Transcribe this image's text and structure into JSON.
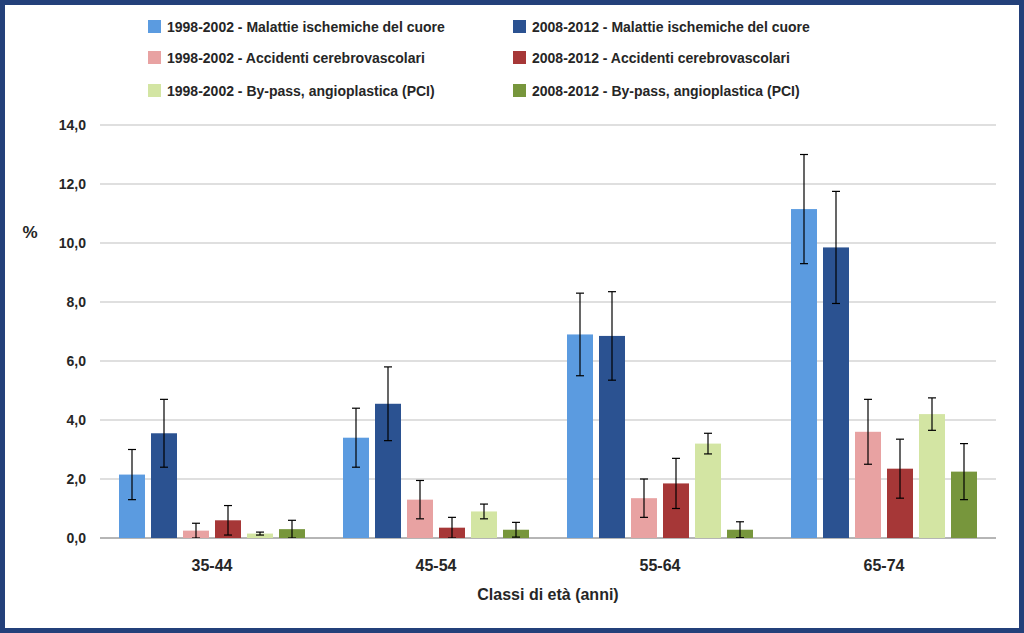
{
  "chart_data": {
    "type": "bar",
    "x_label": "Classi di età (anni)",
    "y_label": "%",
    "categories": [
      "35-44",
      "45-54",
      "55-64",
      "65-74"
    ],
    "series": [
      {
        "name": "1998-2002 - Malattie ischemiche del cuore",
        "color": "#5b9be0",
        "values": [
          2.15,
          3.4,
          6.9,
          11.15
        ],
        "errors": [
          0.85,
          1.0,
          1.4,
          1.85
        ]
      },
      {
        "name": "2008-2012 - Malattie ischemiche del cuore",
        "color": "#2b5291",
        "values": [
          3.55,
          4.55,
          6.85,
          9.85
        ],
        "errors": [
          1.15,
          1.25,
          1.5,
          1.9
        ]
      },
      {
        "name": "1998-2002 - Accidenti cerebrovascolari",
        "color": "#e8a2a2",
        "values": [
          0.25,
          1.3,
          1.35,
          3.6
        ],
        "errors": [
          0.25,
          0.65,
          0.65,
          1.1
        ]
      },
      {
        "name": "2008-2012 - Accidenti cerebrovascolari",
        "color": "#a63737",
        "values": [
          0.6,
          0.35,
          1.85,
          2.35
        ],
        "errors": [
          0.5,
          0.35,
          0.85,
          1.0
        ]
      },
      {
        "name": "1998-2002 - By-pass, angioplastica (PCI)",
        "color": "#d3e5a3",
        "values": [
          0.15,
          0.9,
          3.2,
          4.2
        ],
        "errors": [
          0.05,
          0.25,
          0.35,
          0.55
        ]
      },
      {
        "name": "2008-2012 - By-pass, angioplastica (PCI)",
        "color": "#77963c",
        "values": [
          0.3,
          0.28,
          0.28,
          2.25
        ],
        "errors": [
          0.3,
          0.25,
          0.27,
          0.95
        ]
      }
    ],
    "ylim": [
      0,
      14
    ],
    "yticks": [
      {
        "value": 0,
        "label": "0,0"
      },
      {
        "value": 2,
        "label": "2,0"
      },
      {
        "value": 4,
        "label": "4,0"
      },
      {
        "value": 6,
        "label": "6,0"
      },
      {
        "value": 8,
        "label": "8,0"
      },
      {
        "value": 10,
        "label": "10,0"
      },
      {
        "value": 12,
        "label": "12,0"
      },
      {
        "value": 14,
        "label": "14,0"
      }
    ],
    "grid": true,
    "legend": "top"
  }
}
